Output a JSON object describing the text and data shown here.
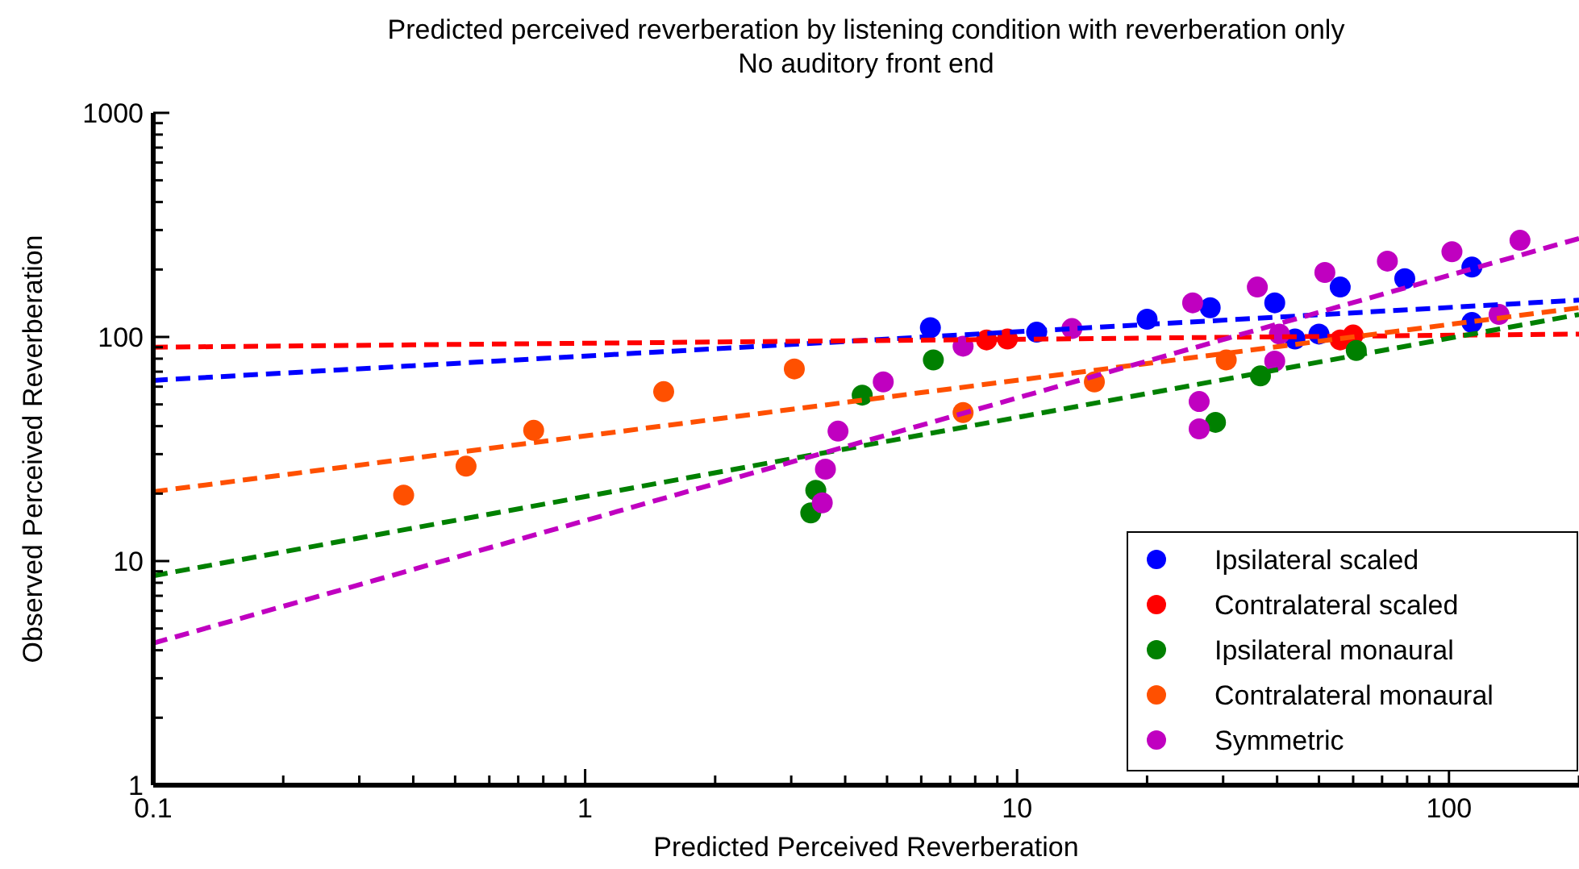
{
  "chart_data": {
    "type": "scatter",
    "title": "Predicted perceived reverberation by listening condition with reverberation only",
    "subtitle": "No auditory front end",
    "xlabel": "Predicted Perceived Reverberation",
    "ylabel": "Observed Perceived Reverberation",
    "log": "xy",
    "grid": false,
    "legend": "bottom right",
    "marker": "circle",
    "xlim": [
      0.1,
      200
    ],
    "ylim": [
      1,
      1000
    ],
    "xticks": [
      {
        "value": 0.1,
        "label": "0.1"
      },
      {
        "value": 0.2,
        "label": null
      },
      {
        "value": 0.3,
        "label": null
      },
      {
        "value": 0.4,
        "label": null
      },
      {
        "value": 0.5,
        "label": null
      },
      {
        "value": 0.6,
        "label": null
      },
      {
        "value": 0.7,
        "label": null
      },
      {
        "value": 0.8,
        "label": null
      },
      {
        "value": 0.9,
        "label": null
      },
      1,
      {
        "value": 2,
        "label": null
      },
      {
        "value": 3,
        "label": null
      },
      {
        "value": 4,
        "label": null
      },
      {
        "value": 5,
        "label": null
      },
      {
        "value": 6,
        "label": null
      },
      {
        "value": 7,
        "label": null
      },
      {
        "value": 8,
        "label": null
      },
      {
        "value": 9,
        "label": null
      },
      10,
      {
        "value": 20,
        "label": null
      },
      {
        "value": 30,
        "label": null
      },
      {
        "value": 40,
        "label": null
      },
      {
        "value": 50,
        "label": null
      },
      {
        "value": 60,
        "label": null
      },
      {
        "value": 70,
        "label": null
      },
      {
        "value": 80,
        "label": null
      },
      {
        "value": 90,
        "label": null
      },
      100,
      {
        "value": 200,
        "label": null
      }
    ],
    "yticks": [
      1,
      {
        "value": 2,
        "label": null
      },
      {
        "value": 3,
        "label": null
      },
      {
        "value": 4,
        "label": null
      },
      {
        "value": 5,
        "label": null
      },
      {
        "value": 6,
        "label": null
      },
      {
        "value": 7,
        "label": null
      },
      {
        "value": 8,
        "label": null
      },
      {
        "value": 9,
        "label": null
      },
      10,
      {
        "value": 20,
        "label": null
      },
      {
        "value": 30,
        "label": null
      },
      {
        "value": 40,
        "label": null
      },
      {
        "value": 50,
        "label": null
      },
      {
        "value": 60,
        "label": null
      },
      {
        "value": 70,
        "label": null
      },
      {
        "value": 80,
        "label": null
      },
      {
        "value": 90,
        "label": null
      },
      100,
      {
        "value": 200,
        "label": null
      },
      {
        "value": 300,
        "label": null
      },
      {
        "value": 400,
        "label": null
      },
      {
        "value": 500,
        "label": null
      },
      {
        "value": 600,
        "label": null
      },
      {
        "value": 700,
        "label": null
      },
      {
        "value": 800,
        "label": null
      },
      {
        "value": 900,
        "label": null
      },
      1000
    ],
    "series": [
      {
        "name": "Ipsilateral scaled",
        "color": "#0000ff",
        "x": [
          6.3,
          11.1,
          20,
          28,
          39.5,
          44,
          50,
          56,
          79,
          113,
          113
        ],
        "values": [
          110,
          105,
          120,
          135,
          142,
          98,
          103,
          167,
          182,
          205,
          116
        ]
      },
      {
        "name": "Contralateral scaled",
        "color": "#ff0000",
        "x": [
          8.5,
          9.5,
          56,
          60
        ],
        "values": [
          97,
          98,
          97,
          102
        ]
      },
      {
        "name": "Ipsilateral monaural",
        "color": "#008000",
        "x": [
          3.33,
          3.42,
          4.38,
          6.4,
          28.8,
          36.6,
          61
        ],
        "values": [
          16.4,
          20.7,
          55,
          79,
          41.6,
          67,
          87
        ]
      },
      {
        "name": "Contralateral monaural",
        "color": "#ff5000",
        "x": [
          0.38,
          0.53,
          0.76,
          1.52,
          3.05,
          7.5,
          15.1,
          30.5
        ],
        "values": [
          19.7,
          26.5,
          38.3,
          57,
          72,
          46,
          63,
          79
        ]
      },
      {
        "name": "Symmetric",
        "color": "#c000c0",
        "x": [
          3.54,
          3.6,
          3.85,
          4.9,
          7.5,
          13.4,
          25.5,
          26.4,
          26.4,
          36,
          40.5,
          39.5,
          51.6,
          72,
          101.6,
          146,
          130.6
        ],
        "values": [
          18.2,
          25.7,
          38,
          63,
          91,
          109,
          142,
          51.5,
          38.9,
          167,
          103,
          78,
          194,
          218,
          240,
          270,
          126
        ]
      },
      {
        "type": "line",
        "line_style": "dashed",
        "marker": "none",
        "color": "#0000ff",
        "x": [
          0.1,
          200
        ],
        "values": [
          64,
          146
        ]
      },
      {
        "type": "line",
        "line_style": "dashed",
        "marker": "none",
        "color": "#ff0000",
        "x": [
          0.1,
          200
        ],
        "values": [
          90,
          103
        ]
      },
      {
        "type": "line",
        "line_style": "dashed",
        "marker": "none",
        "color": "#008000",
        "x": [
          0.1,
          200
        ],
        "values": [
          8.6,
          126
        ]
      },
      {
        "type": "line",
        "line_style": "dashed",
        "marker": "none",
        "color": "#ff5000",
        "x": [
          0.1,
          200
        ],
        "values": [
          20.4,
          135
        ]
      },
      {
        "type": "line",
        "line_style": "dashed",
        "marker": "none",
        "color": "#c000c0",
        "x": [
          0.1,
          200
        ],
        "values": [
          4.3,
          275
        ]
      }
    ]
  }
}
